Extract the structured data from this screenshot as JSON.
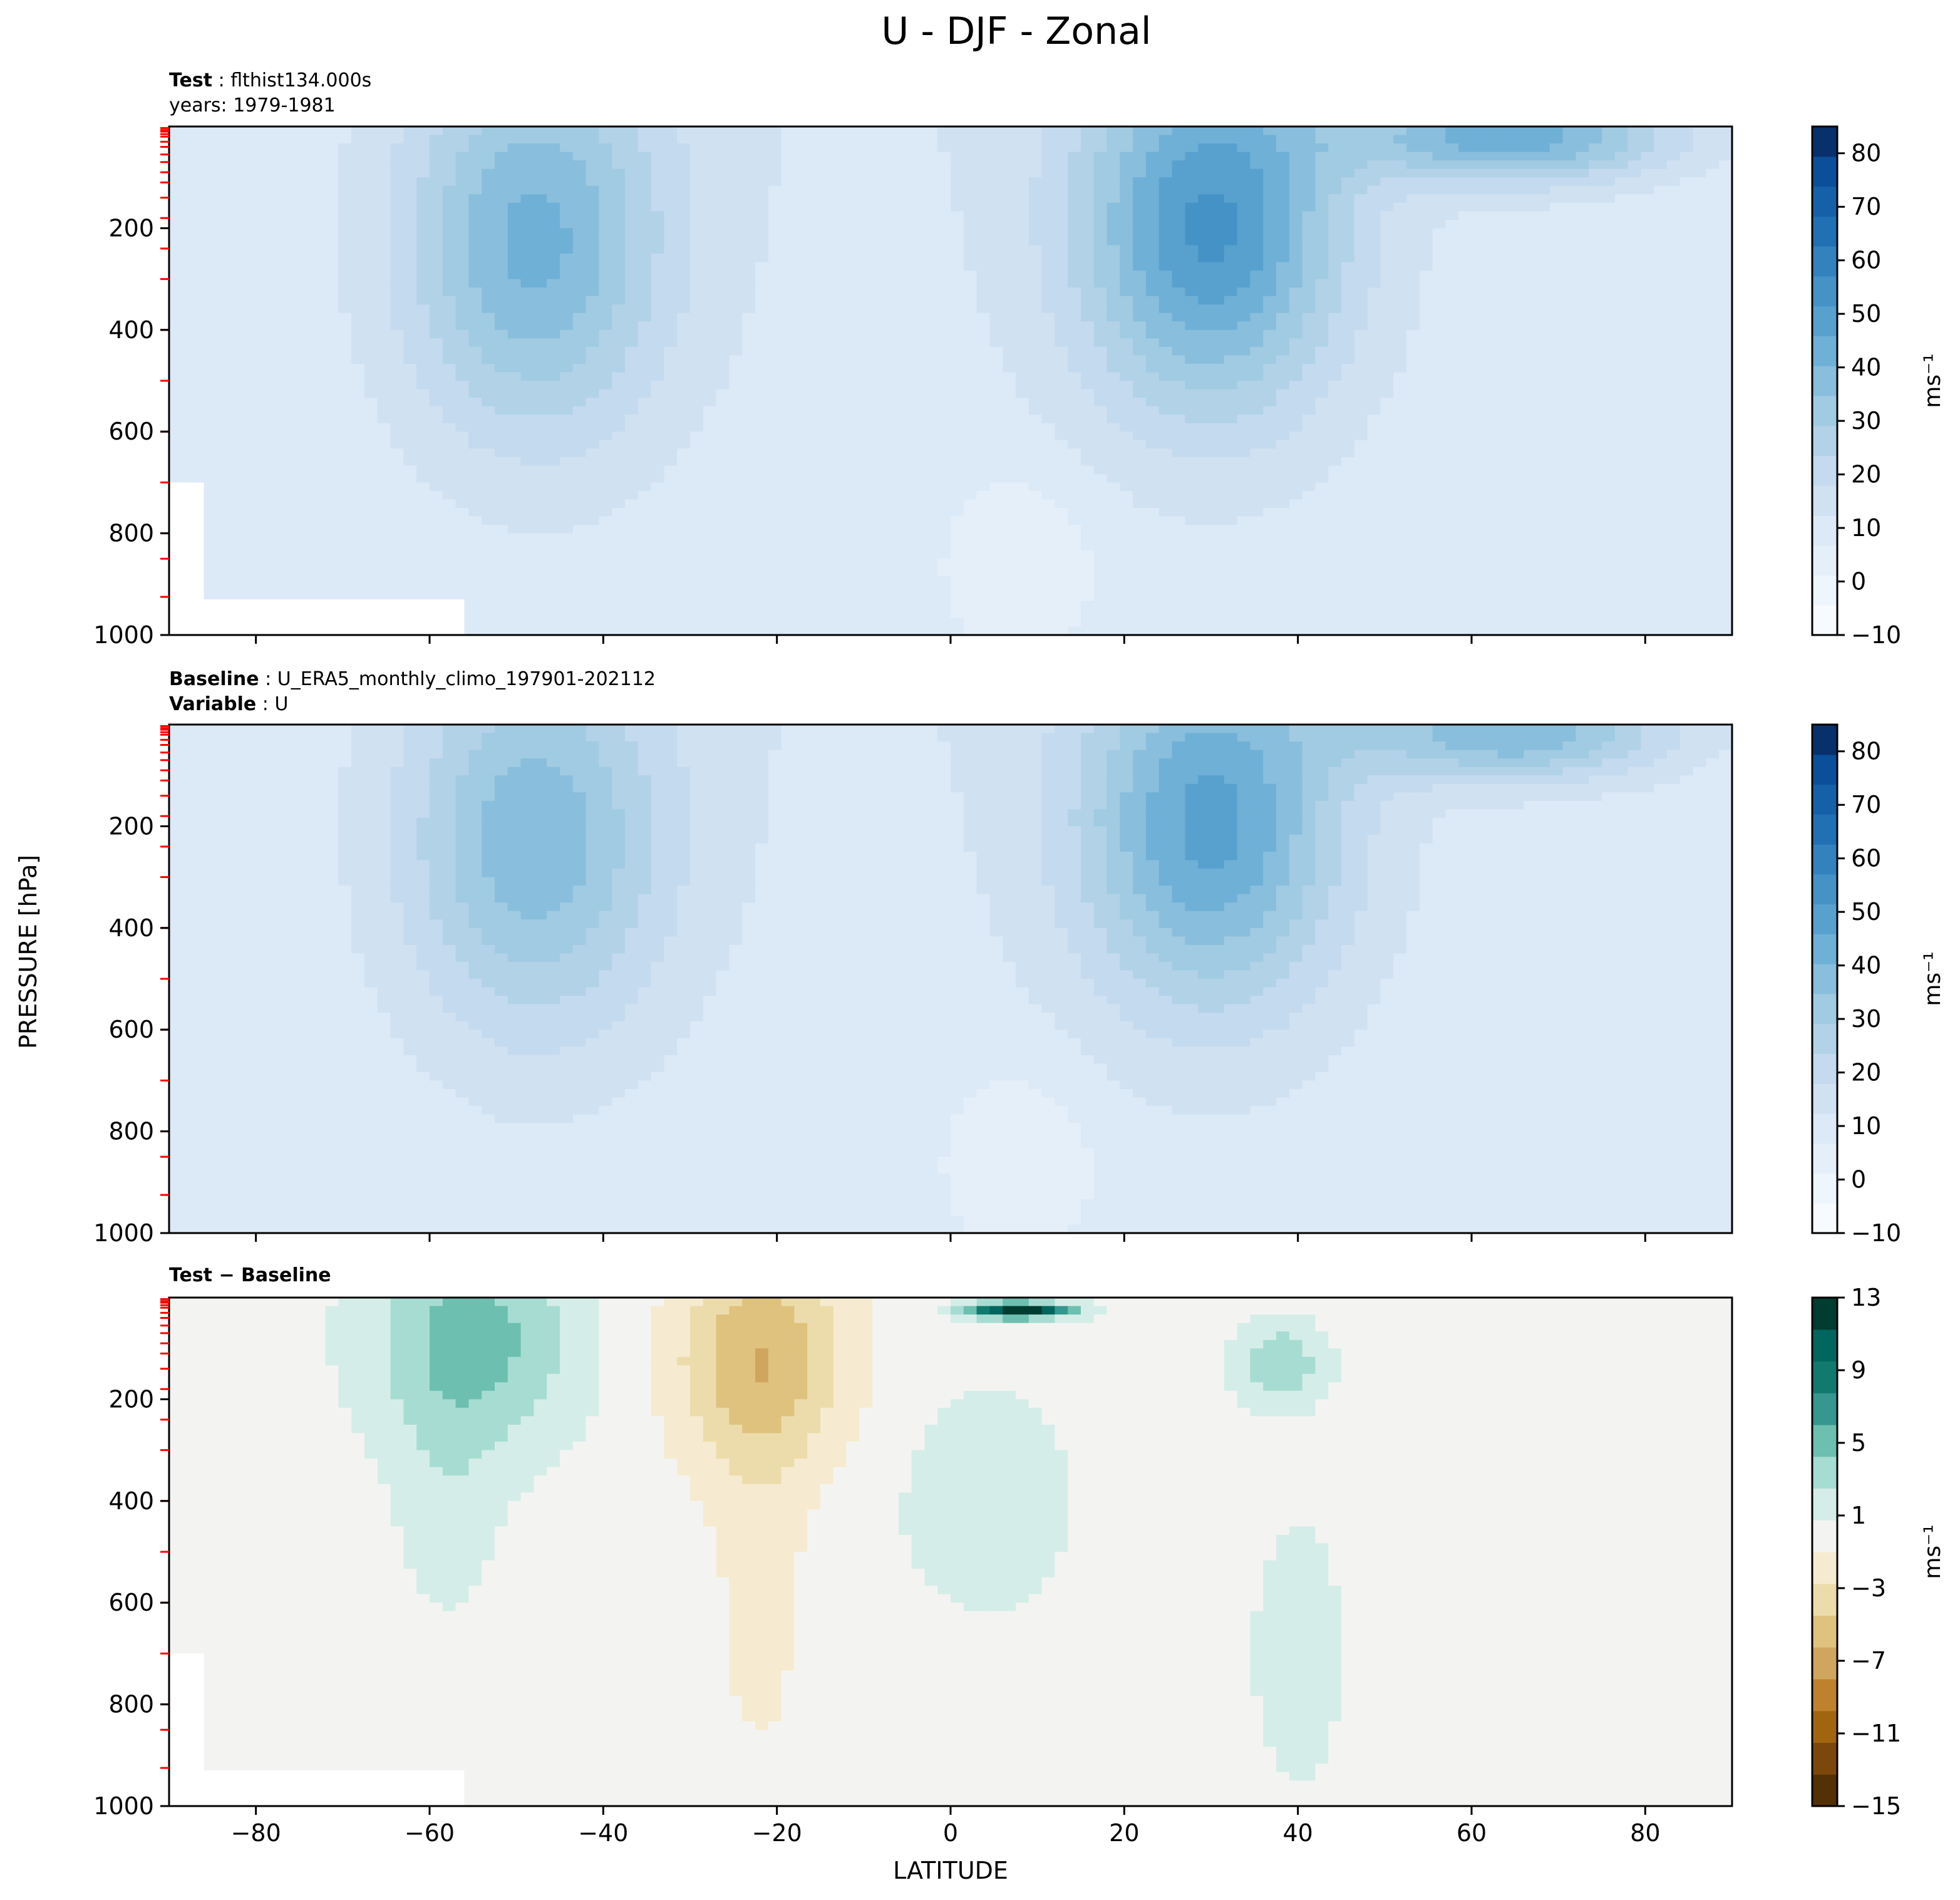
{
  "figure": {
    "title": "U - DJF - Zonal",
    "shared_ylabel": "PRESSURE [hPa]",
    "shared_xlabel": "LATITUDE"
  },
  "colors": {
    "blues": [
      "#f7fbff",
      "#eef5fc",
      "#e5eff9",
      "#dce9f6",
      "#d0e1f2",
      "#c4daee",
      "#b2d2e8",
      "#a1cbe2",
      "#89bedc",
      "#6fb0d7",
      "#58a1cf",
      "#4592c6",
      "#3282be",
      "#2070b4",
      "#1561a9",
      "#0a4f9a",
      "#08306b"
    ],
    "brbg": [
      "#543005",
      "#7b470b",
      "#a1650f",
      "#bf812d",
      "#d0a55e",
      "#dfc27d",
      "#eddcab",
      "#f6ebd0",
      "#f3f4f2",
      "#d5ede8",
      "#a7dcd2",
      "#6dbfb0",
      "#35978f",
      "#117a6e",
      "#01665e",
      "#003c30"
    ],
    "ticks_red": "#ff0000"
  },
  "chart_data": [
    {
      "type": "heatmap",
      "panel": "test",
      "label_bold": "Test",
      "label_text": "flthist134.000s",
      "subtitle": "years: 1979-1981",
      "xlim": [
        -90,
        90
      ],
      "ylim": [
        1000,
        0
      ],
      "yticks": [
        200,
        400,
        600,
        800,
        1000
      ],
      "xticks": [
        -80,
        -60,
        -40,
        -20,
        0,
        20,
        40,
        60,
        80
      ],
      "colorbar": {
        "label": "ms⁻¹",
        "ticks": [
          80,
          70,
          60,
          50,
          40,
          30,
          20,
          10,
          0,
          -10
        ],
        "range": [
          -10,
          85
        ]
      },
      "features": [
        {
          "name": "SH jet",
          "lat": -48,
          "pressure": 230,
          "max": 40
        },
        {
          "name": "NH jet",
          "lat": 30,
          "pressure": 200,
          "max": 50
        },
        {
          "name": "NH stratospheric jet",
          "lat": 65,
          "pressure": 20,
          "max": 45
        },
        {
          "name": "tropical easterlies",
          "lat": 8,
          "pressure": 850,
          "max": -5
        }
      ]
    },
    {
      "type": "heatmap",
      "panel": "baseline",
      "label_bold": "Baseline",
      "label_text": "U_ERA5_monthly_climo_197901-202112",
      "label2_bold": "Variable",
      "label2_text": "U",
      "xlim": [
        -90,
        90
      ],
      "ylim": [
        1000,
        0
      ],
      "yticks": [
        200,
        400,
        600,
        800,
        1000
      ],
      "xticks": [
        -80,
        -60,
        -40,
        -20,
        0,
        20,
        40,
        60,
        80
      ],
      "colorbar": {
        "label": "ms⁻¹",
        "ticks": [
          80,
          70,
          60,
          50,
          40,
          30,
          20,
          10,
          0,
          -10
        ],
        "range": [
          -10,
          85
        ]
      },
      "features": [
        {
          "name": "SH jet",
          "lat": -48,
          "pressure": 230,
          "max": 37
        },
        {
          "name": "NH jet",
          "lat": 30,
          "pressure": 200,
          "max": 45
        },
        {
          "name": "NH stratospheric jet",
          "lat": 65,
          "pressure": 20,
          "max": 40
        },
        {
          "name": "tropical easterlies",
          "lat": 8,
          "pressure": 850,
          "max": -5
        }
      ]
    },
    {
      "type": "heatmap",
      "panel": "difference",
      "label_bold": "Test − Baseline",
      "xlim": [
        -90,
        90
      ],
      "ylim": [
        1000,
        0
      ],
      "yticks": [
        200,
        400,
        600,
        800,
        1000
      ],
      "xticks": [
        -80,
        -60,
        -40,
        -20,
        0,
        20,
        40,
        60,
        80
      ],
      "colorbar": {
        "label": "ms⁻¹",
        "ticks": [
          13,
          9,
          5,
          1,
          -3,
          -7,
          -11,
          -15
        ],
        "range": [
          -15,
          13
        ]
      },
      "features": [
        {
          "name": "SH positive",
          "lat": -55,
          "pressure": 80,
          "max": 5
        },
        {
          "name": "subtropical negative",
          "lat": -22,
          "pressure": 120,
          "max": -6
        },
        {
          "name": "equatorial stratospheric jet",
          "lat": 8,
          "pressure": 25,
          "max": 13
        },
        {
          "name": "tropical positive",
          "lat": 4,
          "pressure": 400,
          "max": 2
        },
        {
          "name": "NH positive",
          "lat": 38,
          "pressure": 130,
          "max": 4
        }
      ]
    }
  ],
  "xtick_labels": [
    "−80",
    "−60",
    "−40",
    "−20",
    "0",
    "20",
    "40",
    "60",
    "80"
  ],
  "ytick_labels": [
    "200",
    "400",
    "600",
    "800",
    "1000"
  ],
  "cbar_labels_main": [
    "80",
    "70",
    "60",
    "50",
    "40",
    "30",
    "20",
    "10",
    "0",
    "−10"
  ],
  "cbar_labels_diff": [
    "13",
    "9",
    "5",
    "1",
    "−3",
    "−7",
    "−11",
    "−15"
  ]
}
